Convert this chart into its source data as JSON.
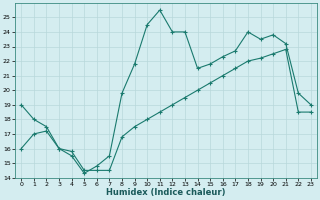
{
  "xlabel": "Humidex (Indice chaleur)",
  "bg_color": "#d4edf0",
  "grid_color": "#b8d8db",
  "line_color": "#1a7a6e",
  "ylim": [
    14,
    26
  ],
  "xlim": [
    -0.5,
    23.5
  ],
  "yticks": [
    14,
    15,
    16,
    17,
    18,
    19,
    20,
    21,
    22,
    23,
    24,
    25
  ],
  "xticks": [
    0,
    1,
    2,
    3,
    4,
    5,
    6,
    7,
    8,
    9,
    10,
    11,
    12,
    13,
    14,
    15,
    16,
    17,
    18,
    19,
    20,
    21,
    22,
    23
  ],
  "series1_x": [
    0,
    1,
    2,
    3,
    4,
    5,
    6,
    7,
    8,
    9,
    10,
    11,
    12,
    13,
    14,
    15,
    16,
    17,
    18,
    19,
    20,
    21,
    22,
    23
  ],
  "series1_y": [
    19.0,
    18.0,
    17.5,
    16.0,
    15.5,
    14.3,
    14.8,
    15.5,
    19.8,
    21.8,
    24.5,
    25.5,
    24.0,
    24.0,
    21.5,
    21.8,
    22.3,
    22.7,
    24.0,
    23.5,
    23.8,
    23.2,
    19.8,
    19.0
  ],
  "series2_x": [
    0,
    1,
    2,
    3,
    4,
    5,
    6,
    7,
    8,
    9,
    10,
    11,
    12,
    13,
    14,
    15,
    16,
    17,
    18,
    19,
    20,
    21,
    22,
    23
  ],
  "series2_y": [
    16.0,
    17.0,
    17.2,
    16.0,
    15.8,
    14.5,
    14.5,
    14.5,
    16.8,
    17.5,
    18.0,
    18.5,
    19.0,
    19.5,
    20.0,
    20.5,
    21.0,
    21.5,
    22.0,
    22.2,
    22.5,
    22.8,
    18.5,
    18.5
  ]
}
